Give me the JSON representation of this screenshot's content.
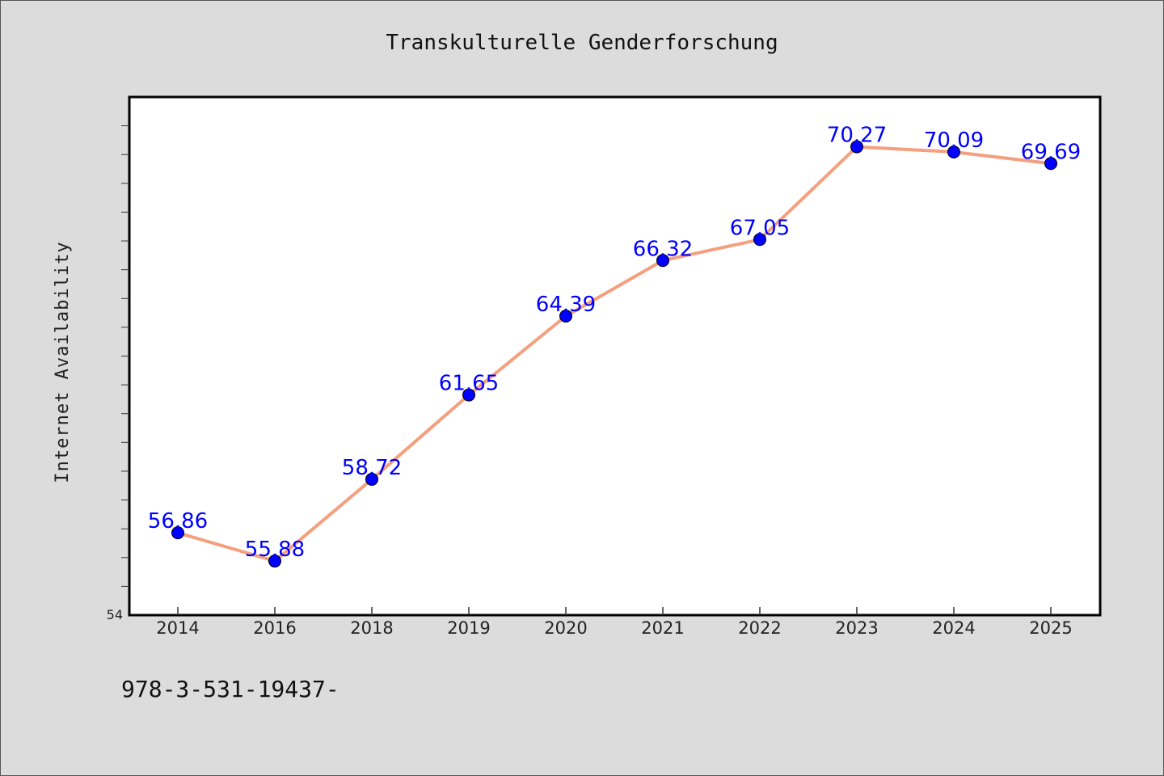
{
  "chart_data": {
    "type": "line",
    "title": "Transkulturelle Genderforschung",
    "xlabel": "",
    "ylabel": "Internet Availability",
    "categories": [
      "2014",
      "2016",
      "2018",
      "2019",
      "2020",
      "2021",
      "2022",
      "2023",
      "2024",
      "2025"
    ],
    "series": [
      {
        "values": [
          56.86,
          55.88,
          58.72,
          61.65,
          64.39,
          66.32,
          67.05,
          70.27,
          70.09,
          69.69
        ],
        "labels": [
          "56.86",
          "55.88",
          "58.72",
          "61.65",
          "64.39",
          "66.32",
          "67.05",
          "70.27",
          "70.09",
          "69.69"
        ],
        "line_color": "#f4a07f",
        "marker_color": "#0000ff"
      }
    ],
    "ylim": [
      54,
      72
    ],
    "y_tick_labels": [
      "54"
    ],
    "grid": false,
    "legend": "none"
  },
  "footer": {
    "text": "978-3-531-19437-"
  },
  "colors": {
    "background": "#dcdcdc",
    "plot_background": "#ffffff",
    "line": "#f4a07f",
    "marker": "#0000ff",
    "data_label": "#0000ff"
  }
}
